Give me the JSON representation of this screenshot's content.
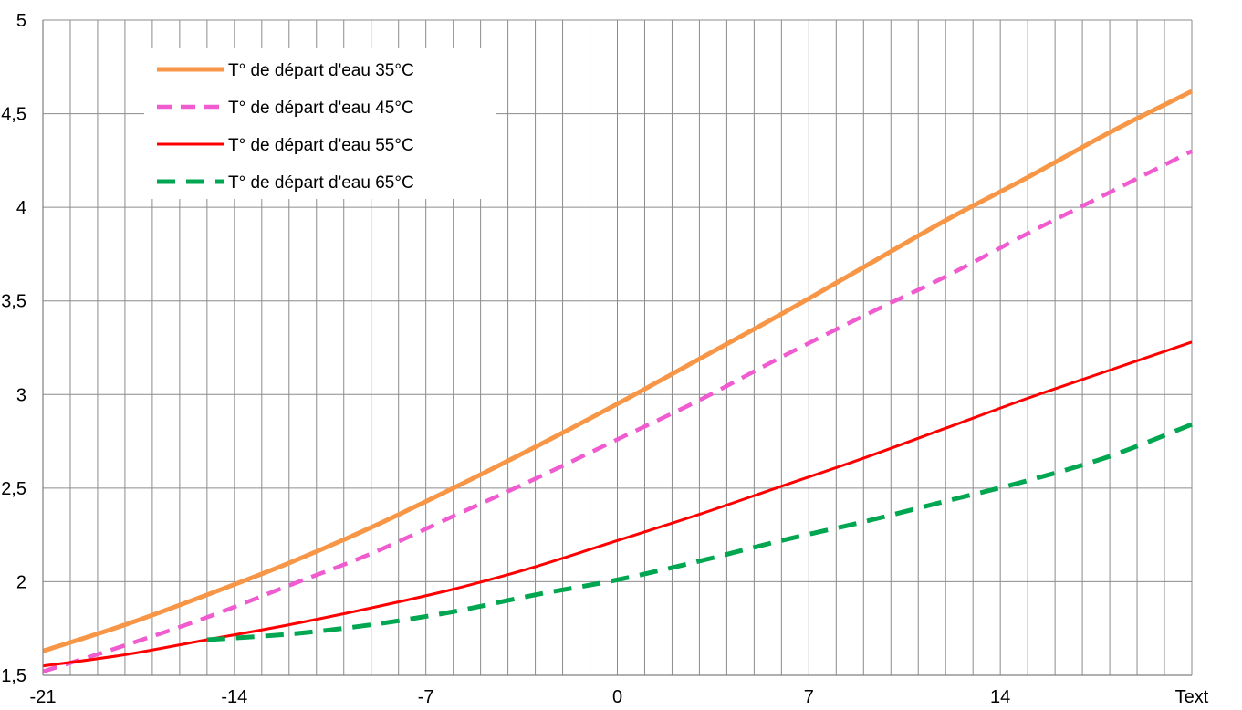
{
  "chart_data": {
    "type": "line",
    "title": "",
    "xlabel": "Text",
    "ylabel": "",
    "xlim": [
      -21,
      21
    ],
    "ylim": [
      1.5,
      5
    ],
    "x_ticks": [
      "-21",
      "-14",
      "-7",
      "0",
      "7",
      "14"
    ],
    "x_tick_values": [
      -21,
      -14,
      -7,
      0,
      7,
      14
    ],
    "x_end_label": "Text",
    "y_ticks": [
      "1,5",
      "2",
      "2,5",
      "3",
      "3,5",
      "4",
      "4,5",
      "5"
    ],
    "y_tick_values": [
      1.5,
      2,
      2.5,
      3,
      3.5,
      4,
      4.5,
      5
    ],
    "grid": true,
    "legend_position": "top-left",
    "series": [
      {
        "name": "T° de départ d'eau 35°C",
        "color": "#F79646",
        "style": "solid",
        "x": [
          -21,
          -18,
          -15,
          -12,
          -9,
          -6,
          -3,
          0,
          3,
          6,
          9,
          12,
          15,
          18,
          21
        ],
        "y": [
          1.63,
          1.77,
          1.93,
          2.1,
          2.29,
          2.5,
          2.72,
          2.95,
          3.19,
          3.43,
          3.68,
          3.93,
          4.16,
          4.4,
          4.62
        ]
      },
      {
        "name": "T° de départ d'eau 45°C",
        "color": "#F05BD0",
        "style": "dashed",
        "x": [
          -21,
          -18,
          -15,
          -12,
          -9,
          -6,
          -3,
          0,
          3,
          6,
          9,
          12,
          15,
          18,
          21
        ],
        "y": [
          1.52,
          1.66,
          1.81,
          1.98,
          2.15,
          2.35,
          2.55,
          2.76,
          2.97,
          3.2,
          3.42,
          3.63,
          3.86,
          4.08,
          4.3
        ]
      },
      {
        "name": "T° de départ d'eau 55°C",
        "color": "#FF0000",
        "style": "solid",
        "x": [
          -21,
          -18,
          -15,
          -12,
          -9,
          -6,
          -3,
          0,
          3,
          6,
          9,
          12,
          15,
          18,
          21
        ],
        "y": [
          1.55,
          1.61,
          1.69,
          1.77,
          1.86,
          1.96,
          2.08,
          2.22,
          2.36,
          2.51,
          2.66,
          2.82,
          2.98,
          3.13,
          3.28
        ]
      },
      {
        "name": "T° de départ d'eau 65°C",
        "color": "#00A650",
        "style": "dashed",
        "x": [
          -15,
          -12,
          -9,
          -6,
          -3,
          0,
          3,
          6,
          9,
          12,
          15,
          18,
          21
        ],
        "y": [
          1.69,
          1.72,
          1.77,
          1.84,
          1.93,
          2.01,
          2.11,
          2.22,
          2.32,
          2.43,
          2.54,
          2.67,
          2.84
        ]
      }
    ]
  }
}
